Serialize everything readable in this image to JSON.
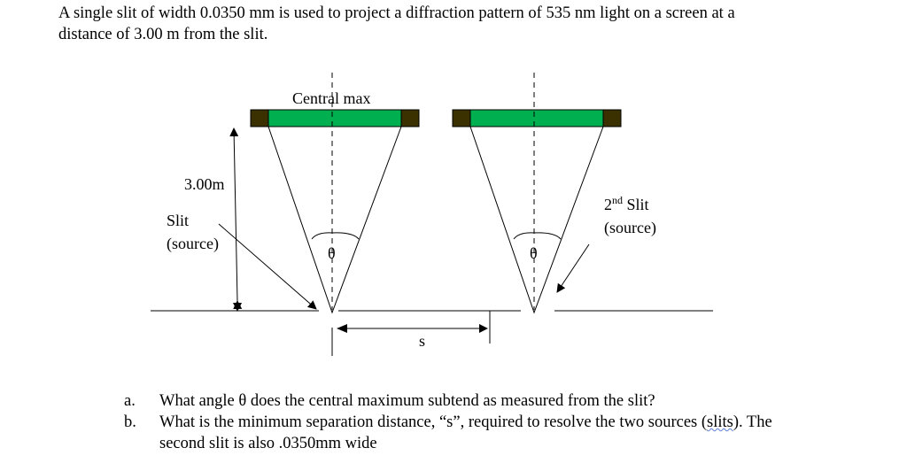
{
  "problem": {
    "line1": "A single slit of width 0.0350 mm is used to project a diffraction pattern of 535 nm light on a screen at a",
    "line2": "distance of 3.00 m from the slit."
  },
  "diagram": {
    "central_max_label": "Central max",
    "distance_label": "3.00m",
    "slit_label": "Slit",
    "slit_source_label": "(source)",
    "second_slit_label_num": "2",
    "second_slit_label_sup": "nd",
    "second_slit_label_word": " Slit",
    "second_slit_source_label": "(source)",
    "theta_label": "θ",
    "separation_label": "s",
    "colors": {
      "screen_bright": "#00b050",
      "screen_dark": "#3a3000"
    }
  },
  "questions": [
    {
      "marker": "a.",
      "text": "What angle θ does the central maximum subtend as measured from the slit?"
    },
    {
      "marker": "b.",
      "text_before": "What is the minimum separation distance, “s”, required to resolve the two sources (",
      "text_wavy": "slits",
      "text_after": ").  The",
      "text_line2": "second slit is also .0350mm wide"
    }
  ]
}
